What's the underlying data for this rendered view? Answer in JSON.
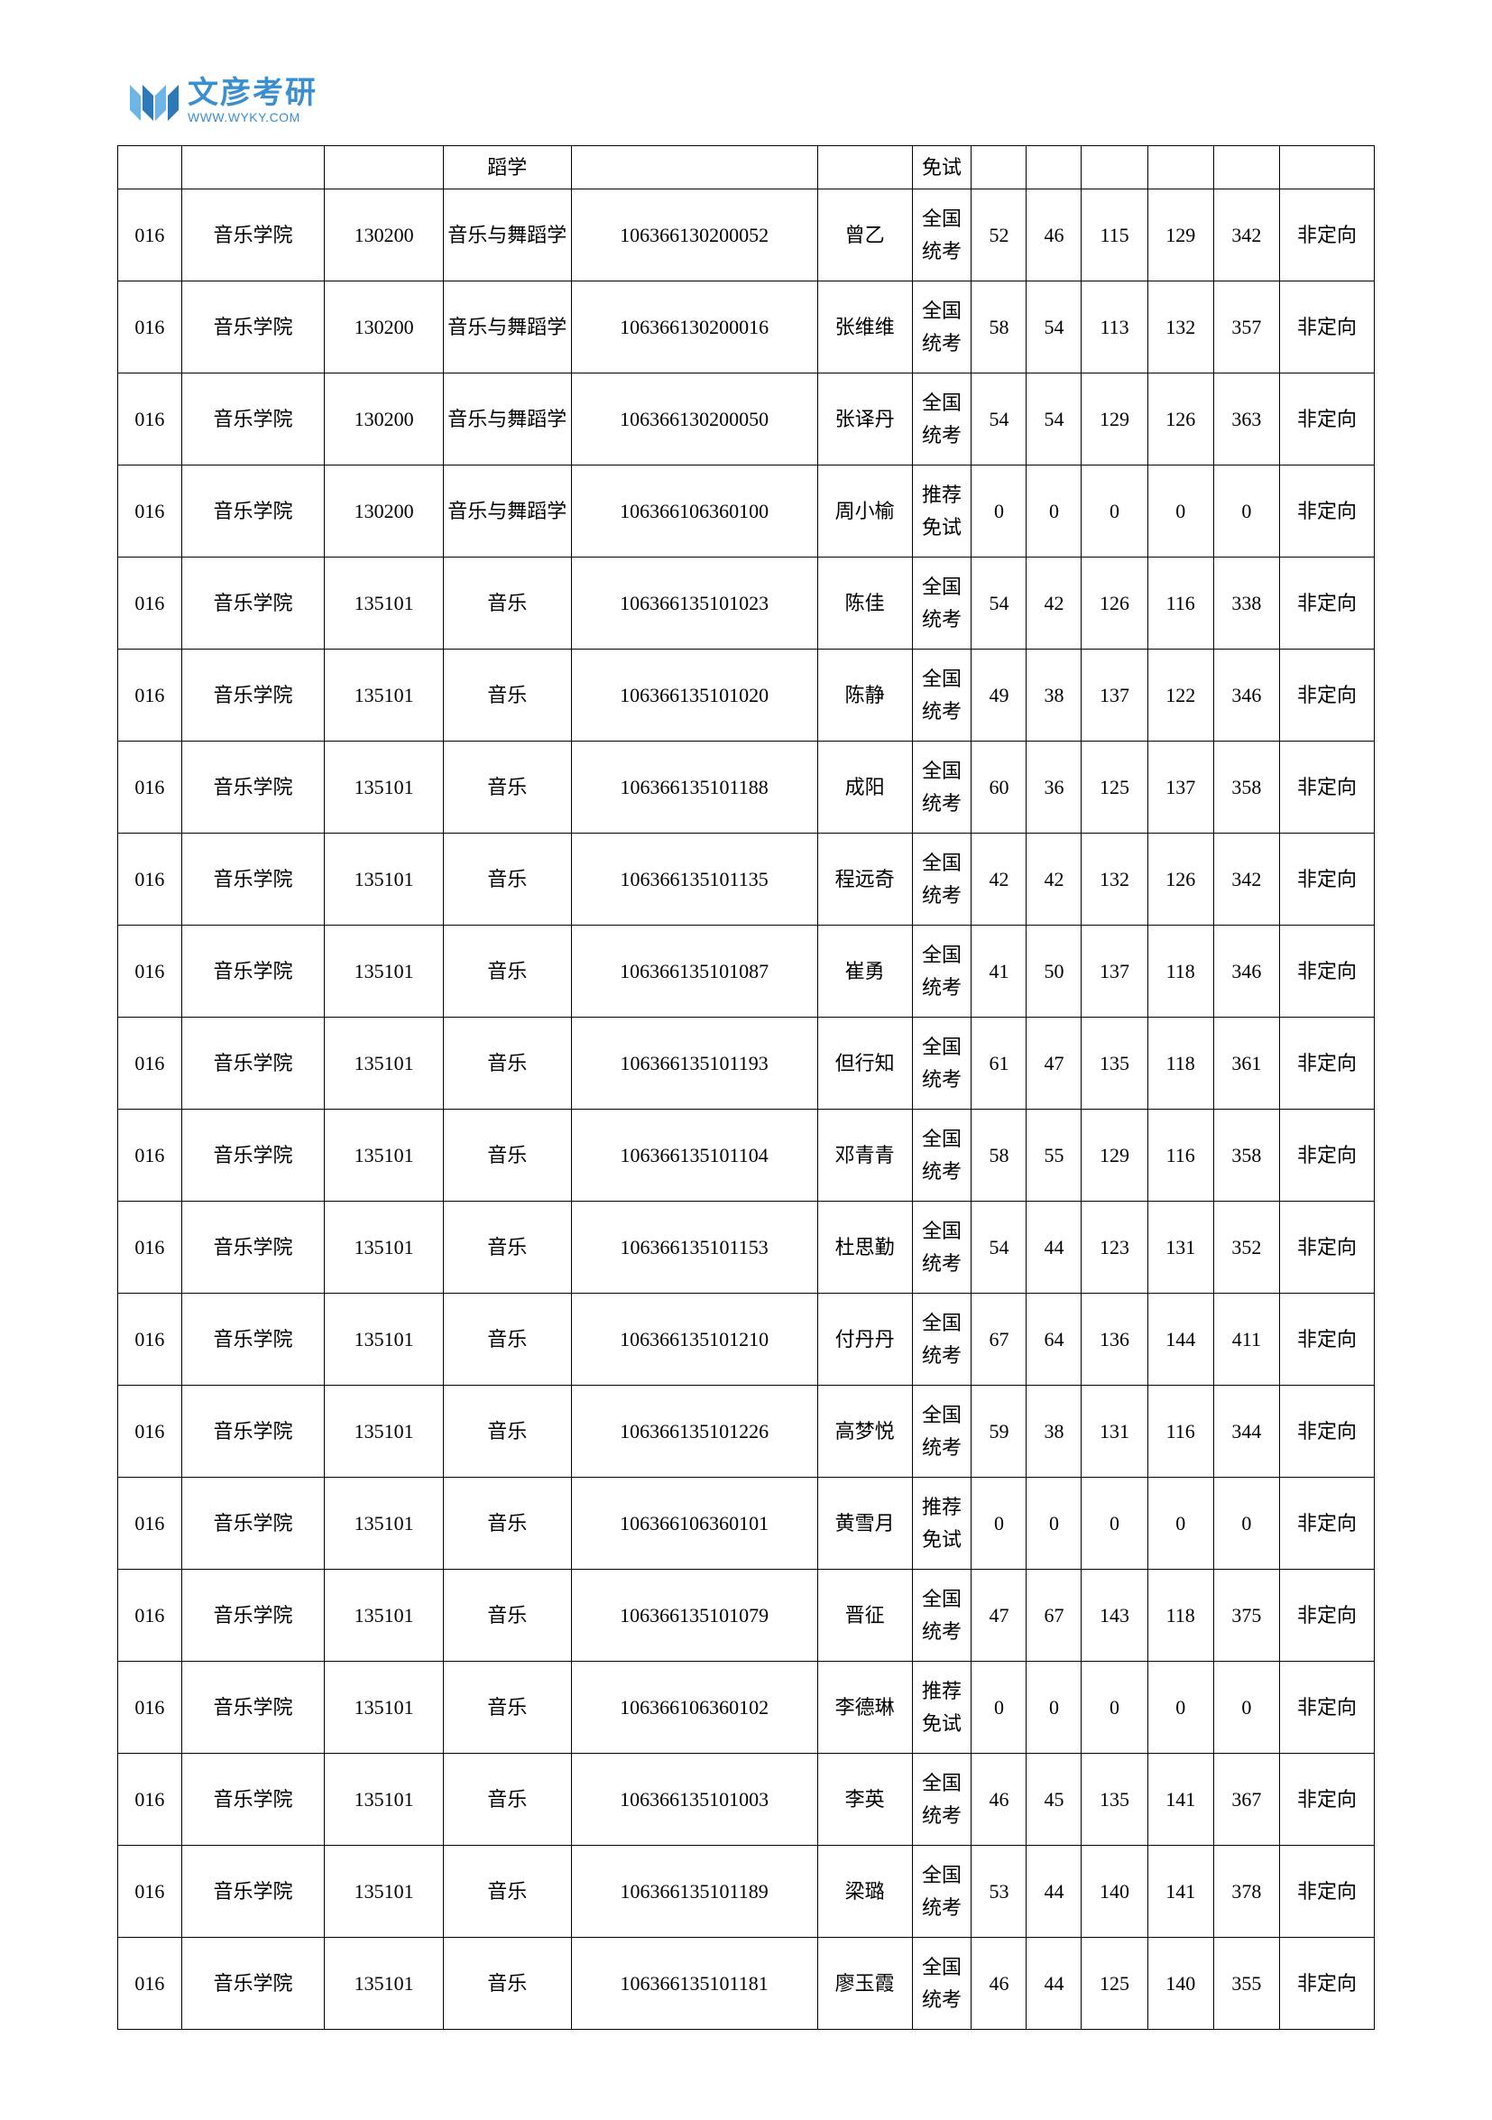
{
  "logo": {
    "cn": "文彦考研",
    "en": "WWW.WYKY.COM",
    "icon_color_light": "#6cb5e4",
    "icon_color_dark": "#2b79b8"
  },
  "table": {
    "columns": [
      {
        "key": "code",
        "class": "col-code"
      },
      {
        "key": "school",
        "class": "col-school"
      },
      {
        "key": "major_code",
        "class": "col-major-code"
      },
      {
        "key": "major",
        "class": "col-major"
      },
      {
        "key": "id",
        "class": "col-id"
      },
      {
        "key": "name",
        "class": "col-name"
      },
      {
        "key": "exam",
        "class": "col-exam"
      },
      {
        "key": "s1",
        "class": "col-s1"
      },
      {
        "key": "s2",
        "class": "col-s2"
      },
      {
        "key": "s3",
        "class": "col-s3"
      },
      {
        "key": "s4",
        "class": "col-s4"
      },
      {
        "key": "total",
        "class": "col-total"
      },
      {
        "key": "type",
        "class": "col-type"
      }
    ],
    "first_row": {
      "code": "",
      "school": "",
      "major_code": "",
      "major": "蹈学",
      "id": "",
      "name": "",
      "exam": "免试",
      "s1": "",
      "s2": "",
      "s3": "",
      "s4": "",
      "total": "",
      "type": ""
    },
    "rows": [
      {
        "code": "016",
        "school": "音乐学院",
        "major_code": "130200",
        "major": "音乐与舞蹈学",
        "id": "106366130200052",
        "name": "曾乙",
        "exam": "全国统考",
        "s1": "52",
        "s2": "46",
        "s3": "115",
        "s4": "129",
        "total": "342",
        "type": "非定向"
      },
      {
        "code": "016",
        "school": "音乐学院",
        "major_code": "130200",
        "major": "音乐与舞蹈学",
        "id": "106366130200016",
        "name": "张维维",
        "exam": "全国统考",
        "s1": "58",
        "s2": "54",
        "s3": "113",
        "s4": "132",
        "total": "357",
        "type": "非定向"
      },
      {
        "code": "016",
        "school": "音乐学院",
        "major_code": "130200",
        "major": "音乐与舞蹈学",
        "id": "106366130200050",
        "name": "张译丹",
        "exam": "全国统考",
        "s1": "54",
        "s2": "54",
        "s3": "129",
        "s4": "126",
        "total": "363",
        "type": "非定向"
      },
      {
        "code": "016",
        "school": "音乐学院",
        "major_code": "130200",
        "major": "音乐与舞蹈学",
        "id": "106366106360100",
        "name": "周小榆",
        "exam": "推荐免试",
        "s1": "0",
        "s2": "0",
        "s3": "0",
        "s4": "0",
        "total": "0",
        "type": "非定向"
      },
      {
        "code": "016",
        "school": "音乐学院",
        "major_code": "135101",
        "major": "音乐",
        "id": "106366135101023",
        "name": "陈佳",
        "exam": "全国统考",
        "s1": "54",
        "s2": "42",
        "s3": "126",
        "s4": "116",
        "total": "338",
        "type": "非定向"
      },
      {
        "code": "016",
        "school": "音乐学院",
        "major_code": "135101",
        "major": "音乐",
        "id": "106366135101020",
        "name": "陈静",
        "exam": "全国统考",
        "s1": "49",
        "s2": "38",
        "s3": "137",
        "s4": "122",
        "total": "346",
        "type": "非定向"
      },
      {
        "code": "016",
        "school": "音乐学院",
        "major_code": "135101",
        "major": "音乐",
        "id": "106366135101188",
        "name": "成阳",
        "exam": "全国统考",
        "s1": "60",
        "s2": "36",
        "s3": "125",
        "s4": "137",
        "total": "358",
        "type": "非定向"
      },
      {
        "code": "016",
        "school": "音乐学院",
        "major_code": "135101",
        "major": "音乐",
        "id": "106366135101135",
        "name": "程远奇",
        "exam": "全国统考",
        "s1": "42",
        "s2": "42",
        "s3": "132",
        "s4": "126",
        "total": "342",
        "type": "非定向"
      },
      {
        "code": "016",
        "school": "音乐学院",
        "major_code": "135101",
        "major": "音乐",
        "id": "106366135101087",
        "name": "崔勇",
        "exam": "全国统考",
        "s1": "41",
        "s2": "50",
        "s3": "137",
        "s4": "118",
        "total": "346",
        "type": "非定向"
      },
      {
        "code": "016",
        "school": "音乐学院",
        "major_code": "135101",
        "major": "音乐",
        "id": "106366135101193",
        "name": "但行知",
        "exam": "全国统考",
        "s1": "61",
        "s2": "47",
        "s3": "135",
        "s4": "118",
        "total": "361",
        "type": "非定向"
      },
      {
        "code": "016",
        "school": "音乐学院",
        "major_code": "135101",
        "major": "音乐",
        "id": "106366135101104",
        "name": "邓青青",
        "exam": "全国统考",
        "s1": "58",
        "s2": "55",
        "s3": "129",
        "s4": "116",
        "total": "358",
        "type": "非定向"
      },
      {
        "code": "016",
        "school": "音乐学院",
        "major_code": "135101",
        "major": "音乐",
        "id": "106366135101153",
        "name": "杜思勤",
        "exam": "全国统考",
        "s1": "54",
        "s2": "44",
        "s3": "123",
        "s4": "131",
        "total": "352",
        "type": "非定向"
      },
      {
        "code": "016",
        "school": "音乐学院",
        "major_code": "135101",
        "major": "音乐",
        "id": "106366135101210",
        "name": "付丹丹",
        "exam": "全国统考",
        "s1": "67",
        "s2": "64",
        "s3": "136",
        "s4": "144",
        "total": "411",
        "type": "非定向"
      },
      {
        "code": "016",
        "school": "音乐学院",
        "major_code": "135101",
        "major": "音乐",
        "id": "106366135101226",
        "name": "高梦悦",
        "exam": "全国统考",
        "s1": "59",
        "s2": "38",
        "s3": "131",
        "s4": "116",
        "total": "344",
        "type": "非定向"
      },
      {
        "code": "016",
        "school": "音乐学院",
        "major_code": "135101",
        "major": "音乐",
        "id": "106366106360101",
        "name": "黄雪月",
        "exam": "推荐免试",
        "s1": "0",
        "s2": "0",
        "s3": "0",
        "s4": "0",
        "total": "0",
        "type": "非定向"
      },
      {
        "code": "016",
        "school": "音乐学院",
        "major_code": "135101",
        "major": "音乐",
        "id": "106366135101079",
        "name": "晋征",
        "exam": "全国统考",
        "s1": "47",
        "s2": "67",
        "s3": "143",
        "s4": "118",
        "total": "375",
        "type": "非定向"
      },
      {
        "code": "016",
        "school": "音乐学院",
        "major_code": "135101",
        "major": "音乐",
        "id": "106366106360102",
        "name": "李德琳",
        "exam": "推荐免试",
        "s1": "0",
        "s2": "0",
        "s3": "0",
        "s4": "0",
        "total": "0",
        "type": "非定向"
      },
      {
        "code": "016",
        "school": "音乐学院",
        "major_code": "135101",
        "major": "音乐",
        "id": "106366135101003",
        "name": "李英",
        "exam": "全国统考",
        "s1": "46",
        "s2": "45",
        "s3": "135",
        "s4": "141",
        "total": "367",
        "type": "非定向"
      },
      {
        "code": "016",
        "school": "音乐学院",
        "major_code": "135101",
        "major": "音乐",
        "id": "106366135101189",
        "name": "梁璐",
        "exam": "全国统考",
        "s1": "53",
        "s2": "44",
        "s3": "140",
        "s4": "141",
        "total": "378",
        "type": "非定向"
      },
      {
        "code": "016",
        "school": "音乐学院",
        "major_code": "135101",
        "major": "音乐",
        "id": "106366135101181",
        "name": "廖玉霞",
        "exam": "全国统考",
        "s1": "46",
        "s2": "44",
        "s3": "125",
        "s4": "140",
        "total": "355",
        "type": "非定向"
      }
    ]
  }
}
